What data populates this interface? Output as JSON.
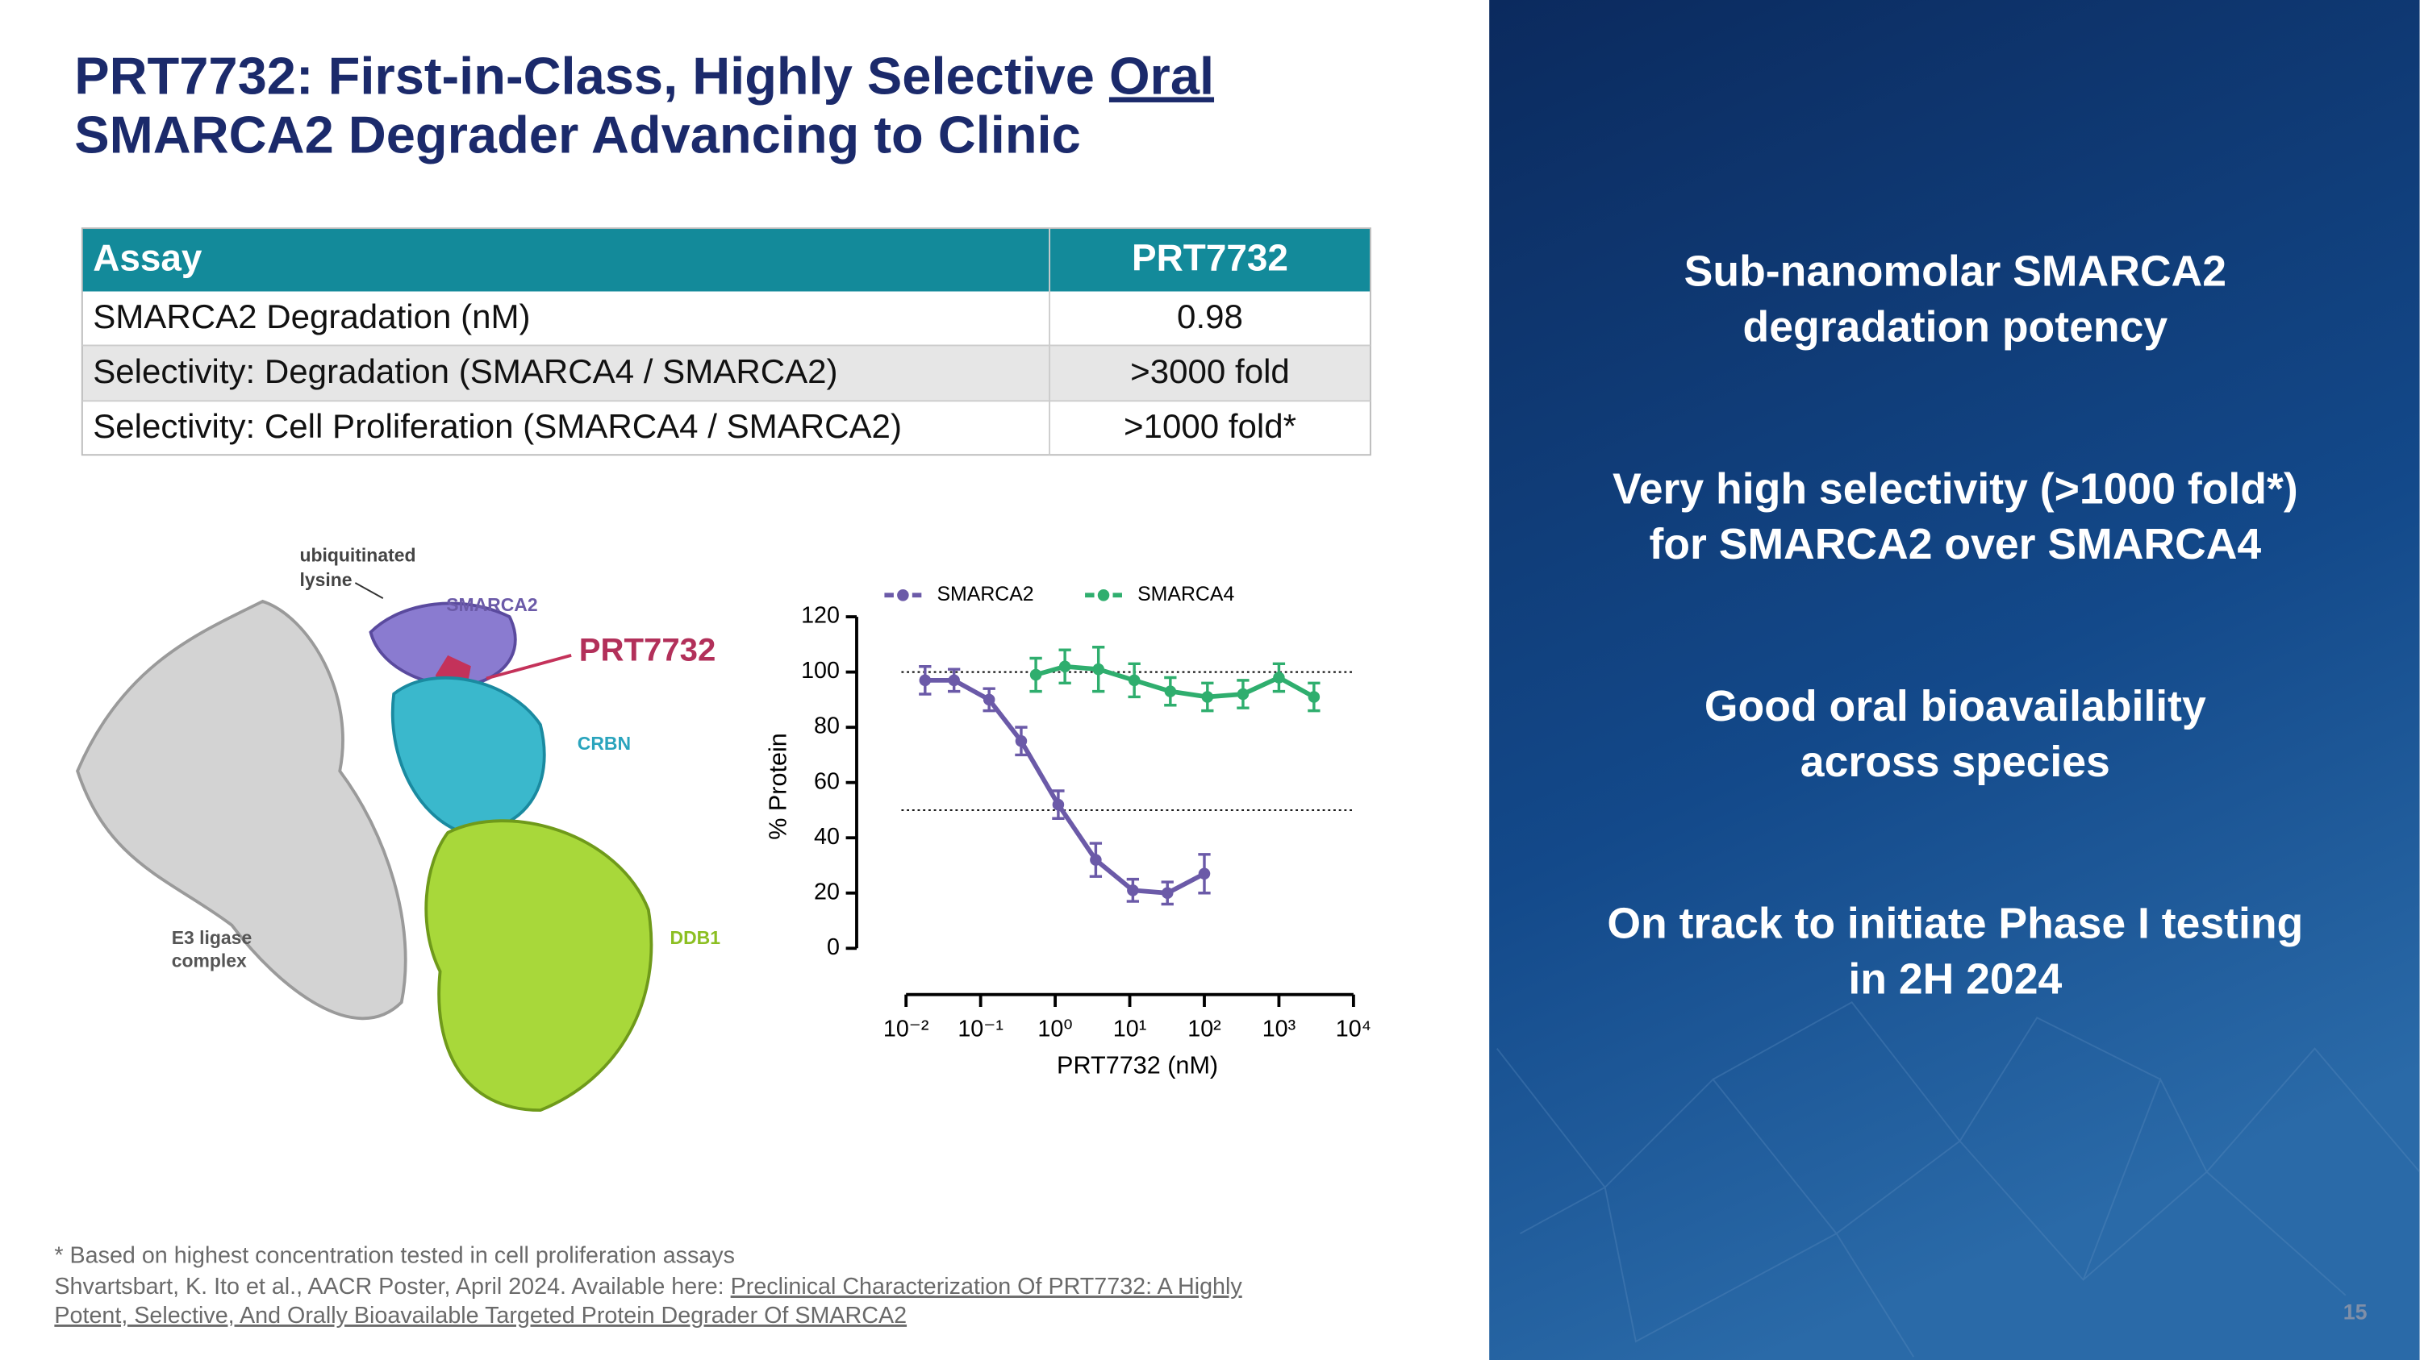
{
  "title": [
    "PRT7732:  First-in-Class, Highly Selective ",
    "Oral",
    "SMARCA2 Degrader Advancing to Clinic"
  ],
  "table": {
    "header": [
      "Assay",
      "PRT7732"
    ],
    "rows": [
      [
        "SMARCA2 Degradation (nM)",
        "0.98"
      ],
      [
        "Selectivity: Degradation (SMARCA4 / SMARCA2)",
        ">3000 fold"
      ],
      [
        "Selectivity: Cell Proliferation (SMARCA4 / SMARCA2)",
        ">1000 fold*"
      ]
    ]
  },
  "figure": {
    "labels": [
      "ubiquitinated",
      "lysine",
      "SMARCA2",
      "PRT7732",
      "CRBN",
      "DDB1",
      "E3 ligase",
      "complex"
    ]
  },
  "chart_data": {
    "type": "line",
    "x_label": "PRT7732 (nM)",
    "y_label": "% Protein",
    "x_log": true,
    "xlim": [
      0.01,
      10000
    ],
    "xticks": [
      {
        "value": 0.01,
        "label": "10⁻²"
      },
      {
        "value": 0.1,
        "label": "10⁻¹"
      },
      {
        "value": 1,
        "label": "10⁰"
      },
      {
        "value": 10,
        "label": "10¹"
      },
      {
        "value": 100,
        "label": "10²"
      },
      {
        "value": 1000,
        "label": "10³"
      },
      {
        "value": 10000,
        "label": "10⁴"
      }
    ],
    "ylim": [
      0,
      120
    ],
    "yticks": [
      0,
      20,
      40,
      60,
      80,
      100,
      120
    ],
    "reference_lines": [
      100,
      50
    ],
    "series": [
      {
        "name": "SMARCA2",
        "color": "#6b5aa8",
        "x": [
          0.018,
          0.044,
          0.13,
          0.35,
          1.1,
          3.5,
          11,
          32,
          100
        ],
        "values": [
          97,
          97,
          90,
          75,
          52,
          32,
          21,
          20,
          27
        ],
        "errors": [
          5,
          4,
          4,
          5,
          5,
          6,
          4,
          4,
          7
        ]
      },
      {
        "name": "SMARCA4",
        "color": "#2fae6e",
        "x": [
          0.55,
          1.35,
          3.8,
          11.5,
          35,
          110,
          330,
          1000,
          2950
        ],
        "values": [
          99,
          102,
          101,
          97,
          93,
          91,
          92,
          98,
          91
        ],
        "errors": [
          6,
          6,
          8,
          6,
          5,
          5,
          5,
          5,
          5
        ]
      }
    ]
  },
  "bullets": [
    [
      "Sub-nanomolar SMARCA2",
      "degradation potency"
    ],
    [
      "Very high selectivity (>1000 fold*)",
      "for SMARCA2 over SMARCA4"
    ],
    [
      "Good oral bioavailability",
      "across species"
    ],
    [
      "On track to initiate Phase I testing",
      "in 2H 2024"
    ]
  ],
  "footnotes": {
    "note": "* Based on highest concentration tested in cell proliferation assays",
    "citation": "Shvartsbart, K. Ito et al., AACR Poster, April 2024. Available here: ",
    "link": [
      "Preclinical Characterization Of PRT7732: A Highly",
      "Potent, Selective, And Orally Bioavailable Targeted Protein Degrader Of SMARCA2"
    ]
  },
  "page_number": "15"
}
